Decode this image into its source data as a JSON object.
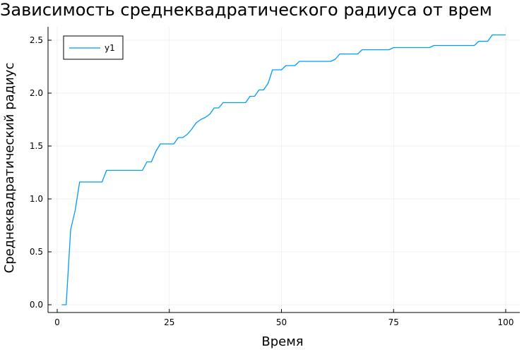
{
  "chart_data": {
    "type": "line",
    "title": "Зависимость среднеквадратического радиуса от врем",
    "xlabel": "Время",
    "ylabel": "Среднеквадратический радиус",
    "xlim": [
      0,
      100
    ],
    "ylim": [
      0,
      2.5
    ],
    "xticks": [
      "0",
      "25",
      "50",
      "75",
      "100"
    ],
    "yticks": [
      "0.0",
      "0.5",
      "1.0",
      "1.5",
      "2.0",
      "2.5"
    ],
    "grid": true,
    "legend_position": "top-left",
    "series": [
      {
        "name": "y1",
        "color": "#009AFA",
        "x": [
          1,
          2,
          3,
          4,
          5,
          6,
          7,
          8,
          9,
          10,
          11,
          12,
          13,
          14,
          15,
          16,
          17,
          18,
          19,
          20,
          21,
          22,
          23,
          24,
          25,
          26,
          27,
          28,
          29,
          30,
          31,
          32,
          33,
          34,
          35,
          36,
          37,
          38,
          39,
          40,
          41,
          42,
          43,
          44,
          45,
          46,
          47,
          48,
          49,
          50,
          51,
          52,
          53,
          54,
          55,
          56,
          57,
          58,
          59,
          60,
          61,
          62,
          63,
          64,
          65,
          66,
          67,
          68,
          69,
          70,
          71,
          72,
          73,
          74,
          75,
          76,
          77,
          78,
          79,
          80,
          81,
          82,
          83,
          84,
          85,
          86,
          87,
          88,
          89,
          90,
          91,
          92,
          93,
          94,
          95,
          96,
          97,
          98,
          99,
          100
        ],
        "values": [
          0.0,
          0.0,
          0.71,
          0.89,
          1.16,
          1.16,
          1.16,
          1.16,
          1.16,
          1.16,
          1.27,
          1.27,
          1.27,
          1.27,
          1.27,
          1.27,
          1.27,
          1.27,
          1.27,
          1.35,
          1.35,
          1.45,
          1.52,
          1.52,
          1.52,
          1.52,
          1.58,
          1.58,
          1.61,
          1.66,
          1.72,
          1.75,
          1.77,
          1.8,
          1.86,
          1.86,
          1.91,
          1.91,
          1.91,
          1.91,
          1.91,
          1.91,
          1.97,
          1.97,
          2.03,
          2.03,
          2.09,
          2.22,
          2.22,
          2.22,
          2.26,
          2.26,
          2.26,
          2.3,
          2.3,
          2.3,
          2.3,
          2.3,
          2.3,
          2.3,
          2.3,
          2.32,
          2.37,
          2.37,
          2.37,
          2.37,
          2.37,
          2.41,
          2.41,
          2.41,
          2.41,
          2.41,
          2.41,
          2.41,
          2.43,
          2.43,
          2.43,
          2.43,
          2.43,
          2.43,
          2.43,
          2.43,
          2.43,
          2.45,
          2.45,
          2.45,
          2.45,
          2.45,
          2.45,
          2.45,
          2.45,
          2.45,
          2.45,
          2.49,
          2.49,
          2.49,
          2.55,
          2.55,
          2.55,
          2.55
        ]
      }
    ]
  }
}
